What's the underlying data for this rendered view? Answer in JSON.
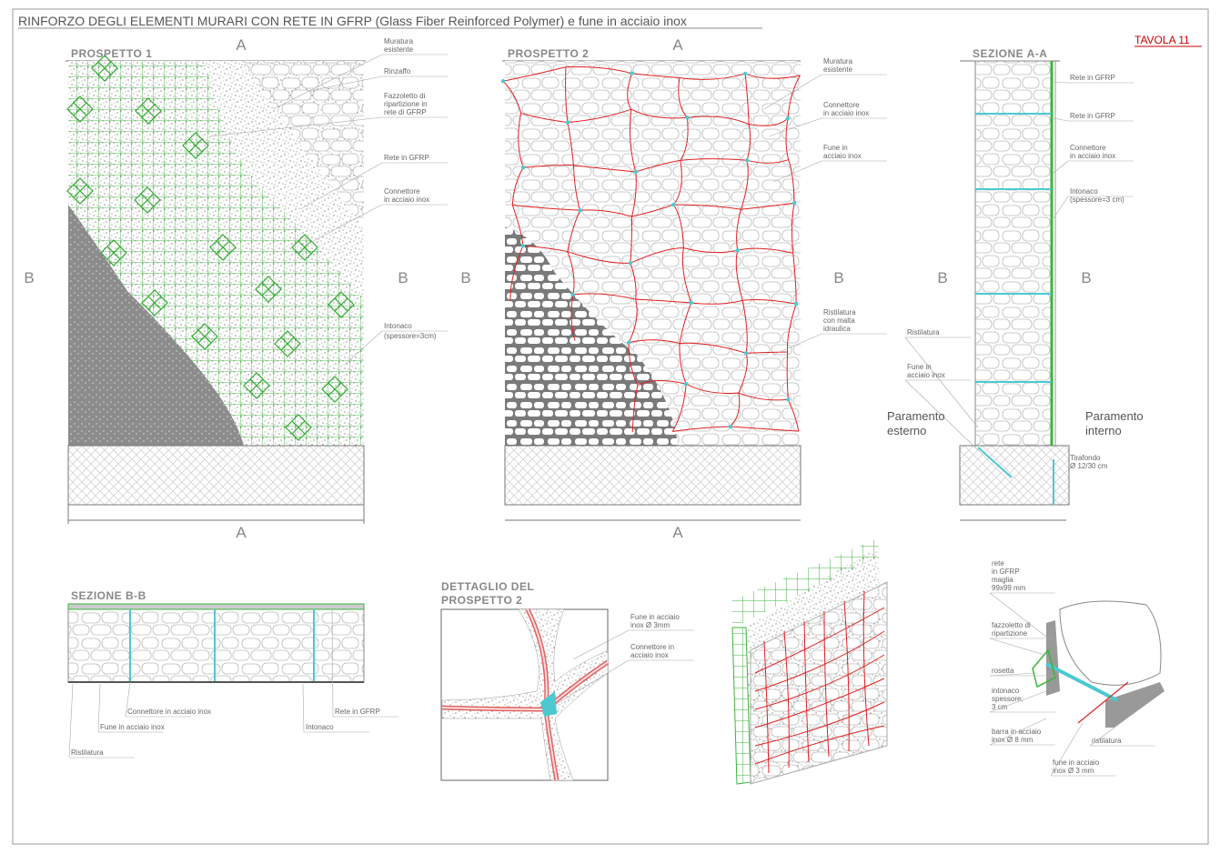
{
  "header": {
    "title": "RINFORZO DEGLI ELEMENTI MURARI CON RETE IN GFRP (Glass Fiber Reinforced Polymer) e fune in acciaio inox",
    "sheet": "TAVOLA 11"
  },
  "section_marks": {
    "a": "A",
    "b": "B"
  },
  "prospetto_1": {
    "title": "PROSPETTO 1",
    "labels": [
      [
        "Muratura",
        "esistente"
      ],
      [
        "Rinzaffo"
      ],
      [
        "Fazzoletto di",
        "ripartizione in",
        "rete di GFRP"
      ],
      [
        "Rete in GFRP"
      ],
      [
        "Connettore",
        "in acciaio inox"
      ],
      [
        "Intonaco"
      ],
      [
        "(spessore=3cm)"
      ]
    ]
  },
  "prospetto_2": {
    "title": "PROSPETTO 2",
    "labels": [
      [
        "Muratura",
        "esistente"
      ],
      [
        "Connettore",
        "in acciaio inox"
      ],
      [
        "Fune in",
        "acciaio inox"
      ],
      [
        "Ristilatura",
        "con malta",
        "idraulica"
      ]
    ]
  },
  "sezione_aa": {
    "title": "SEZIONE A-A",
    "labels": [
      [
        "Rete in GFRP"
      ],
      [
        "Rete in GFRP"
      ],
      [
        "Connettore",
        "in acciaio inox"
      ],
      [
        "Intonaco"
      ],
      [
        "(spessore=3 cm)"
      ],
      [
        "Ristilatura"
      ],
      [
        "Fune in",
        "acciaio inox"
      ],
      [
        "Tirafondo",
        "Ø 12/30 cm"
      ]
    ],
    "sides": [
      [
        "Paramento",
        "esterno"
      ],
      [
        "Paramento",
        "interno"
      ]
    ]
  },
  "sezione_bb": {
    "title": "SEZIONE B-B",
    "labels": [
      [
        "Connettore in acciaio inox"
      ],
      [
        "Fune in acciaio inox"
      ],
      [
        "Ristilatura"
      ],
      [
        "Intonaco"
      ],
      [
        "Rete in GFRP"
      ]
    ]
  },
  "dettaglio": {
    "title": [
      "DETTAGLIO DEL",
      "PROSPETTO 2"
    ],
    "labels": [
      [
        "Fune in acciaio",
        "inox Ø 3mm"
      ],
      [
        "Connettore in",
        "acciaio inox"
      ]
    ]
  },
  "assonometria": {
    "labels": [
      [
        "rete",
        "in GFRP",
        "maglia",
        "99x99 mm"
      ],
      [
        "fazzoletto di",
        "ripartizione"
      ],
      [
        "rosetta"
      ],
      [
        "intonaco",
        "spessore:",
        "3 cm"
      ],
      [
        "barra in acciaio",
        "inox Ø 8 mm"
      ],
      [
        "ristilatura"
      ],
      [
        "fune in acciaio",
        "inox Ø 3 mm"
      ]
    ]
  }
}
